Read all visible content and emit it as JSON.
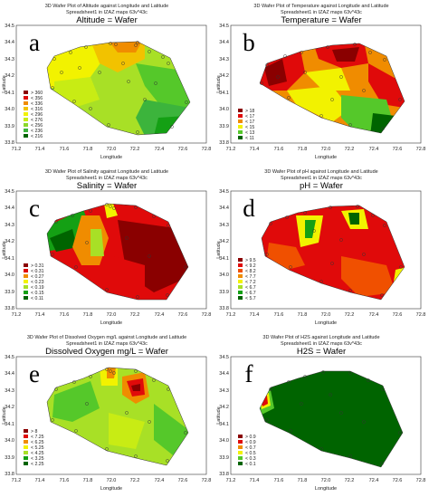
{
  "axes_common": {
    "xlabel": "Longitude",
    "ylabel": "Latitude",
    "xticks": [
      "71.2",
      "71.4",
      "71.6",
      "71.8",
      "72.0",
      "72.2",
      "72.4",
      "72.6",
      "72.8"
    ],
    "yticks": [
      "33.8",
      "33.9",
      "34.0",
      "34.1",
      "34.2",
      "34.3",
      "34.4",
      "34.5"
    ],
    "xlim": [
      71.2,
      72.8
    ],
    "ylim": [
      33.8,
      34.5
    ]
  },
  "colors": {
    "dark_green": "#006400",
    "green": "#14a014",
    "light_green": "#55c82a",
    "yellow_green": "#a8e026",
    "yellow": "#f2f200",
    "orange": "#f08c00",
    "red": "#e00a0a",
    "dark_red": "#8a0000"
  },
  "chart_data": [
    {
      "type": "heatmap",
      "panel_letter": "a",
      "suptitle": "3D Wafer Plot of Altitude against Longitude and Latitude",
      "subtitle": "Spreadsheet1 in IZAZ maps 63v*43c",
      "title": "Altitude = Wafer",
      "legend": [
        "> 360",
        "< 356",
        "< 336",
        "< 316",
        "< 296",
        "< 276",
        "< 256",
        "< 236",
        "< 216"
      ],
      "legend_colors": [
        "#8a0000",
        "#e00a0a",
        "#f08c00",
        "#f2c200",
        "#f2f200",
        "#c8ec14",
        "#8ad82a",
        "#3cb43c",
        "#006400"
      ]
    },
    {
      "type": "heatmap",
      "panel_letter": "b",
      "suptitle": "3D Wafer Plot of Temperature against Longitude and Latitude",
      "subtitle": "Spreadsheet1 in IZAZ maps 63v*43c",
      "title": "Temperature = Wafer",
      "legend": [
        "> 18",
        "< 17",
        "< 17",
        "< 15",
        "< 13",
        "< 11"
      ],
      "legend_colors": [
        "#8a0000",
        "#e00a0a",
        "#f08c00",
        "#f2f200",
        "#55c82a",
        "#006400"
      ]
    },
    {
      "type": "heatmap",
      "panel_letter": "c",
      "suptitle": "3D Wafer Plot of Salinity against Longitude and Latitude",
      "subtitle": "Spreadsheet1 in IZAZ maps 63v*43c",
      "title": "Salinity = Wafer",
      "legend": [
        "> 0.31",
        "< 0.31",
        "< 0.27",
        "< 0.23",
        "< 0.19",
        "< 0.15",
        "< 0.11"
      ],
      "legend_colors": [
        "#8a0000",
        "#e00a0a",
        "#f08c00",
        "#f2f200",
        "#a8e026",
        "#14a014",
        "#006400"
      ]
    },
    {
      "type": "heatmap",
      "panel_letter": "d",
      "suptitle": "3D Wafer Plot of pH against Longitude and Latitude",
      "subtitle": "Spreadsheet1 in IZAZ maps 63v*43c",
      "title": "pH = Wafer",
      "legend": [
        "> 9.5",
        "< 9.2",
        "< 8.2",
        "< 7.7",
        "< 7.2",
        "< 6.7",
        "< 6.7",
        "< 5.7"
      ],
      "legend_colors": [
        "#8a0000",
        "#e00a0a",
        "#f05000",
        "#f08c00",
        "#f2f200",
        "#a8e026",
        "#14a014",
        "#006400"
      ]
    },
    {
      "type": "heatmap",
      "panel_letter": "e",
      "suptitle": "3D Wafer Plot of Dissolved Oxygen mg/L against Longitude and Latitude",
      "subtitle": "Spreadsheet1 in IZAZ maps 63v*43c",
      "title": "Dissolved Oxygen mg/L = Wafer",
      "legend": [
        "> 8",
        "< 7.25",
        "< 6.25",
        "< 5.25",
        "< 4.25",
        "< 3.25",
        "< 2.25"
      ],
      "legend_colors": [
        "#8a0000",
        "#e00a0a",
        "#f08c00",
        "#f2f200",
        "#a8e026",
        "#14a014",
        "#006400"
      ]
    },
    {
      "type": "heatmap",
      "panel_letter": "f",
      "suptitle": "3D Wafer Plot of H2S against Longitude and Latitude",
      "subtitle": "Spreadsheet1 in IZAZ maps 63v*43c",
      "title": "H2S = Wafer",
      "legend": [
        "> 0.9",
        "< 0.9",
        "< 0.7",
        "< 0.5",
        "< 0.3",
        "< 0.1"
      ],
      "legend_colors": [
        "#8a0000",
        "#e00a0a",
        "#f08c00",
        "#f2f200",
        "#55c82a",
        "#006400"
      ]
    }
  ]
}
